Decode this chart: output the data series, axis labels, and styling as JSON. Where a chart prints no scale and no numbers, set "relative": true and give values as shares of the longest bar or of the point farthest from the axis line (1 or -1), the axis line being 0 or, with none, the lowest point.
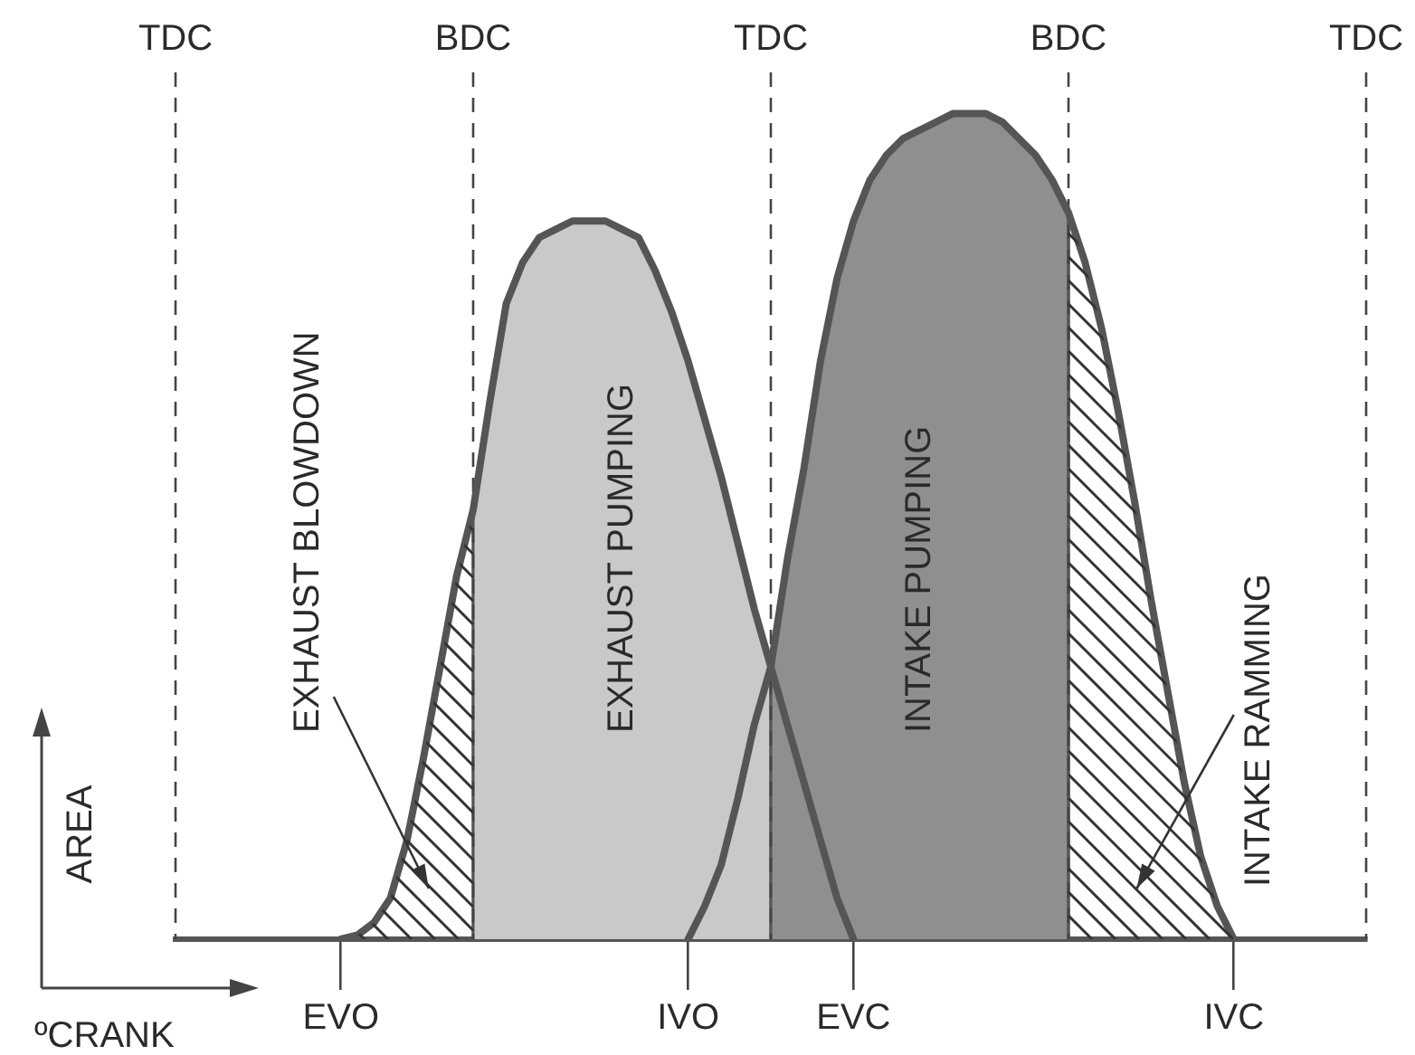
{
  "chart_data": {
    "type": "line",
    "relative": true,
    "xlabel": "ºCRANK",
    "ylabel": "AREA",
    "marker": "none",
    "line_style": "solid",
    "grid": false,
    "legend": false,
    "categories": [
      null,
      null,
      null,
      null,
      null,
      null,
      null,
      null,
      null,
      null,
      "EVO",
      null,
      null,
      null,
      null,
      null,
      null,
      null,
      null,
      null,
      null,
      null,
      null,
      null,
      null,
      null,
      null,
      null,
      null,
      null,
      null,
      "IVO",
      null,
      null,
      null,
      null,
      null,
      null,
      null,
      null,
      null,
      "EVC",
      null,
      null,
      null,
      null,
      null,
      null,
      null,
      null,
      null,
      null,
      null,
      null,
      null,
      null,
      null,
      null,
      null,
      null,
      null,
      null,
      null,
      null,
      "IVC",
      null,
      null,
      null,
      null,
      null,
      null,
      null,
      null
    ],
    "series": [
      {
        "color": "#555555",
        "values": [
          null,
          null,
          null,
          null,
          null,
          null,
          null,
          null,
          null,
          null,
          0,
          0.005,
          0.02,
          0.05,
          0.12,
          0.22,
          0.33,
          0.44,
          0.52,
          0.65,
          0.77,
          0.82,
          0.85,
          0.86,
          0.87,
          0.87,
          0.87,
          0.86,
          0.85,
          0.81,
          0.76,
          0.7,
          0.63,
          0.56,
          0.48,
          0.4,
          0.33,
          0.26,
          0.19,
          0.12,
          0.05,
          0,
          null,
          null,
          null,
          null,
          null,
          null,
          null,
          null,
          null,
          null,
          null,
          null,
          null,
          null,
          null,
          null,
          null,
          null,
          null,
          null,
          null,
          null,
          null,
          null,
          null,
          null,
          null,
          null,
          null,
          null,
          null
        ]
      },
      {
        "color": "#555555",
        "values": [
          null,
          null,
          null,
          null,
          null,
          null,
          null,
          null,
          null,
          null,
          null,
          null,
          null,
          null,
          null,
          null,
          null,
          null,
          null,
          null,
          null,
          null,
          null,
          null,
          null,
          null,
          null,
          null,
          null,
          null,
          null,
          0,
          0.04,
          0.09,
          0.17,
          0.26,
          0.33,
          0.46,
          0.57,
          0.7,
          0.8,
          0.87,
          0.92,
          0.95,
          0.97,
          0.98,
          0.99,
          1,
          1,
          1,
          0.99,
          0.97,
          0.95,
          0.92,
          0.88,
          0.82,
          0.74,
          0.64,
          0.53,
          0.41,
          0.3,
          0.19,
          0.1,
          0.04,
          0,
          null,
          null,
          null,
          null,
          null,
          null,
          null,
          null
        ]
      }
    ],
    "annotations": [
      "TDC",
      "BDC",
      "TDC",
      "BDC",
      "TDC",
      "EXHAUST BLOWDOWN",
      "EXHAUST PUMPING",
      "INTAKE PUMPING",
      "INTAKE RAMMING"
    ]
  }
}
